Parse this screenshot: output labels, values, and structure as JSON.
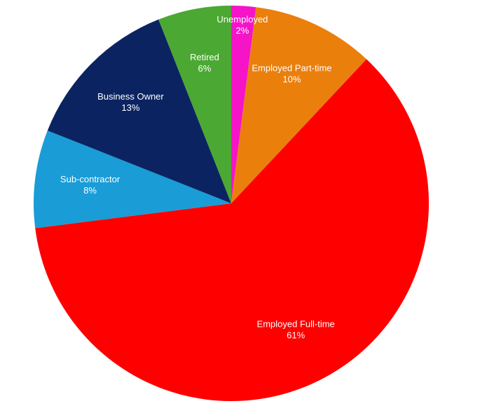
{
  "chart_data": {
    "type": "pie",
    "categories": [
      "Unemployed",
      "Employed Part-time",
      "Employed Full-time",
      "Sub-contractor",
      "Business Owner",
      "Retired"
    ],
    "values": [
      2,
      10,
      61,
      8,
      13,
      6
    ],
    "value_labels": [
      "2%",
      "10%",
      "61%",
      "8%",
      "13%",
      "6%"
    ],
    "colors": [
      "#f514c8",
      "#ea7f0c",
      "#fe0000",
      "#1a9cd7",
      "#0b2461",
      "#4ba833"
    ]
  }
}
